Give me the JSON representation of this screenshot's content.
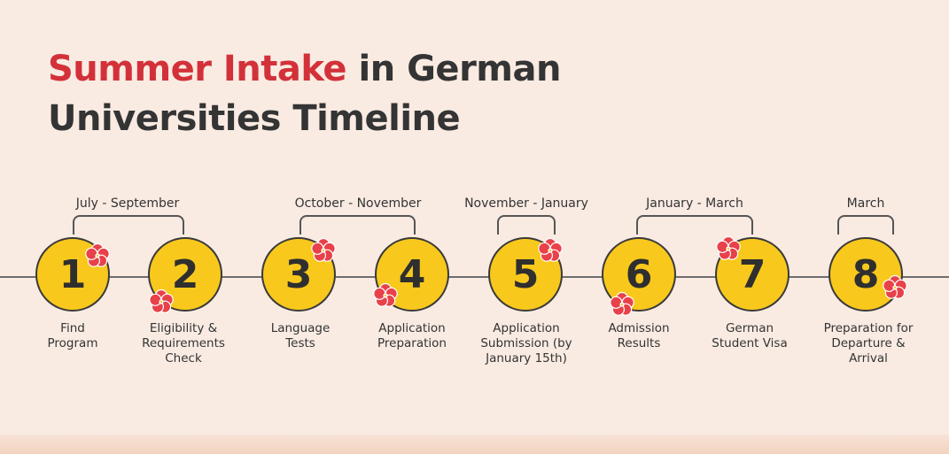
{
  "title": {
    "accent": "Summer Intake",
    "rest_line1": " in German",
    "line2": "Universities Timeline"
  },
  "periods": [
    {
      "label": "July - September"
    },
    {
      "label": "October - November"
    },
    {
      "label": "November - January"
    },
    {
      "label": "January - March"
    },
    {
      "label": "March"
    }
  ],
  "steps": [
    {
      "number": "1",
      "label_lines": [
        "Find",
        "Program"
      ]
    },
    {
      "number": "2",
      "label_lines": [
        "Eligibility &",
        "Requirements",
        "Check"
      ]
    },
    {
      "number": "3",
      "label_lines": [
        "Language",
        "Tests"
      ]
    },
    {
      "number": "4",
      "label_lines": [
        "Application",
        "Preparation"
      ]
    },
    {
      "number": "5",
      "label_lines": [
        "Application",
        "Submission (by",
        "January 15th)"
      ]
    },
    {
      "number": "6",
      "label_lines": [
        "Admission",
        "Results"
      ]
    },
    {
      "number": "7",
      "label_lines": [
        "German",
        "Student Visa"
      ]
    },
    {
      "number": "8",
      "label_lines": [
        "Preparation for",
        "Departure &",
        "Arrival"
      ]
    }
  ],
  "colors": {
    "accent": "#d3313a",
    "circle_fill": "#f8c81c",
    "flower": "#e8414a",
    "background": "#f9ebe2"
  },
  "icons": {
    "flower": "hibiscus-flower-icon"
  }
}
